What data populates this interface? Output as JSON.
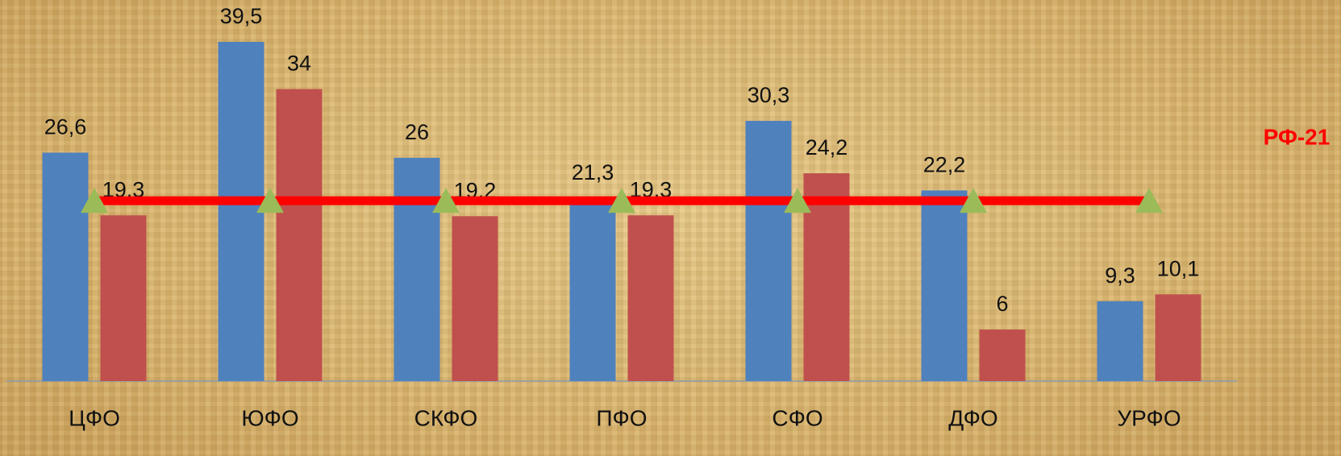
{
  "chart_data": {
    "type": "bar",
    "categories": [
      "ЦФО",
      "ЮФО",
      "СКФО",
      "ПФО",
      "СФО",
      "ДФО",
      "УРФО"
    ],
    "series": [
      {
        "color": "#4f81bd",
        "values": [
          26.6,
          39.5,
          26,
          21.3,
          30.3,
          22.2,
          9.3
        ],
        "value_labels": [
          "26,6",
          "39,5",
          "26",
          "21,3",
          "30,3",
          "22,2",
          "9,3"
        ]
      },
      {
        "color": "#c0504d",
        "values": [
          19.3,
          34,
          19.2,
          19.3,
          24.2,
          6,
          10.1
        ],
        "value_labels": [
          "19,3",
          "34",
          "19,2",
          "19,3",
          "24,2",
          "6",
          "10,1"
        ]
      },
      {
        "name": "РФ-21",
        "type": "line",
        "color": "#ff0000",
        "marker_color": "#9bbb59",
        "values": [
          21,
          21,
          21,
          21,
          21,
          21,
          21
        ]
      }
    ],
    "ylim": [
      0,
      44
    ]
  }
}
